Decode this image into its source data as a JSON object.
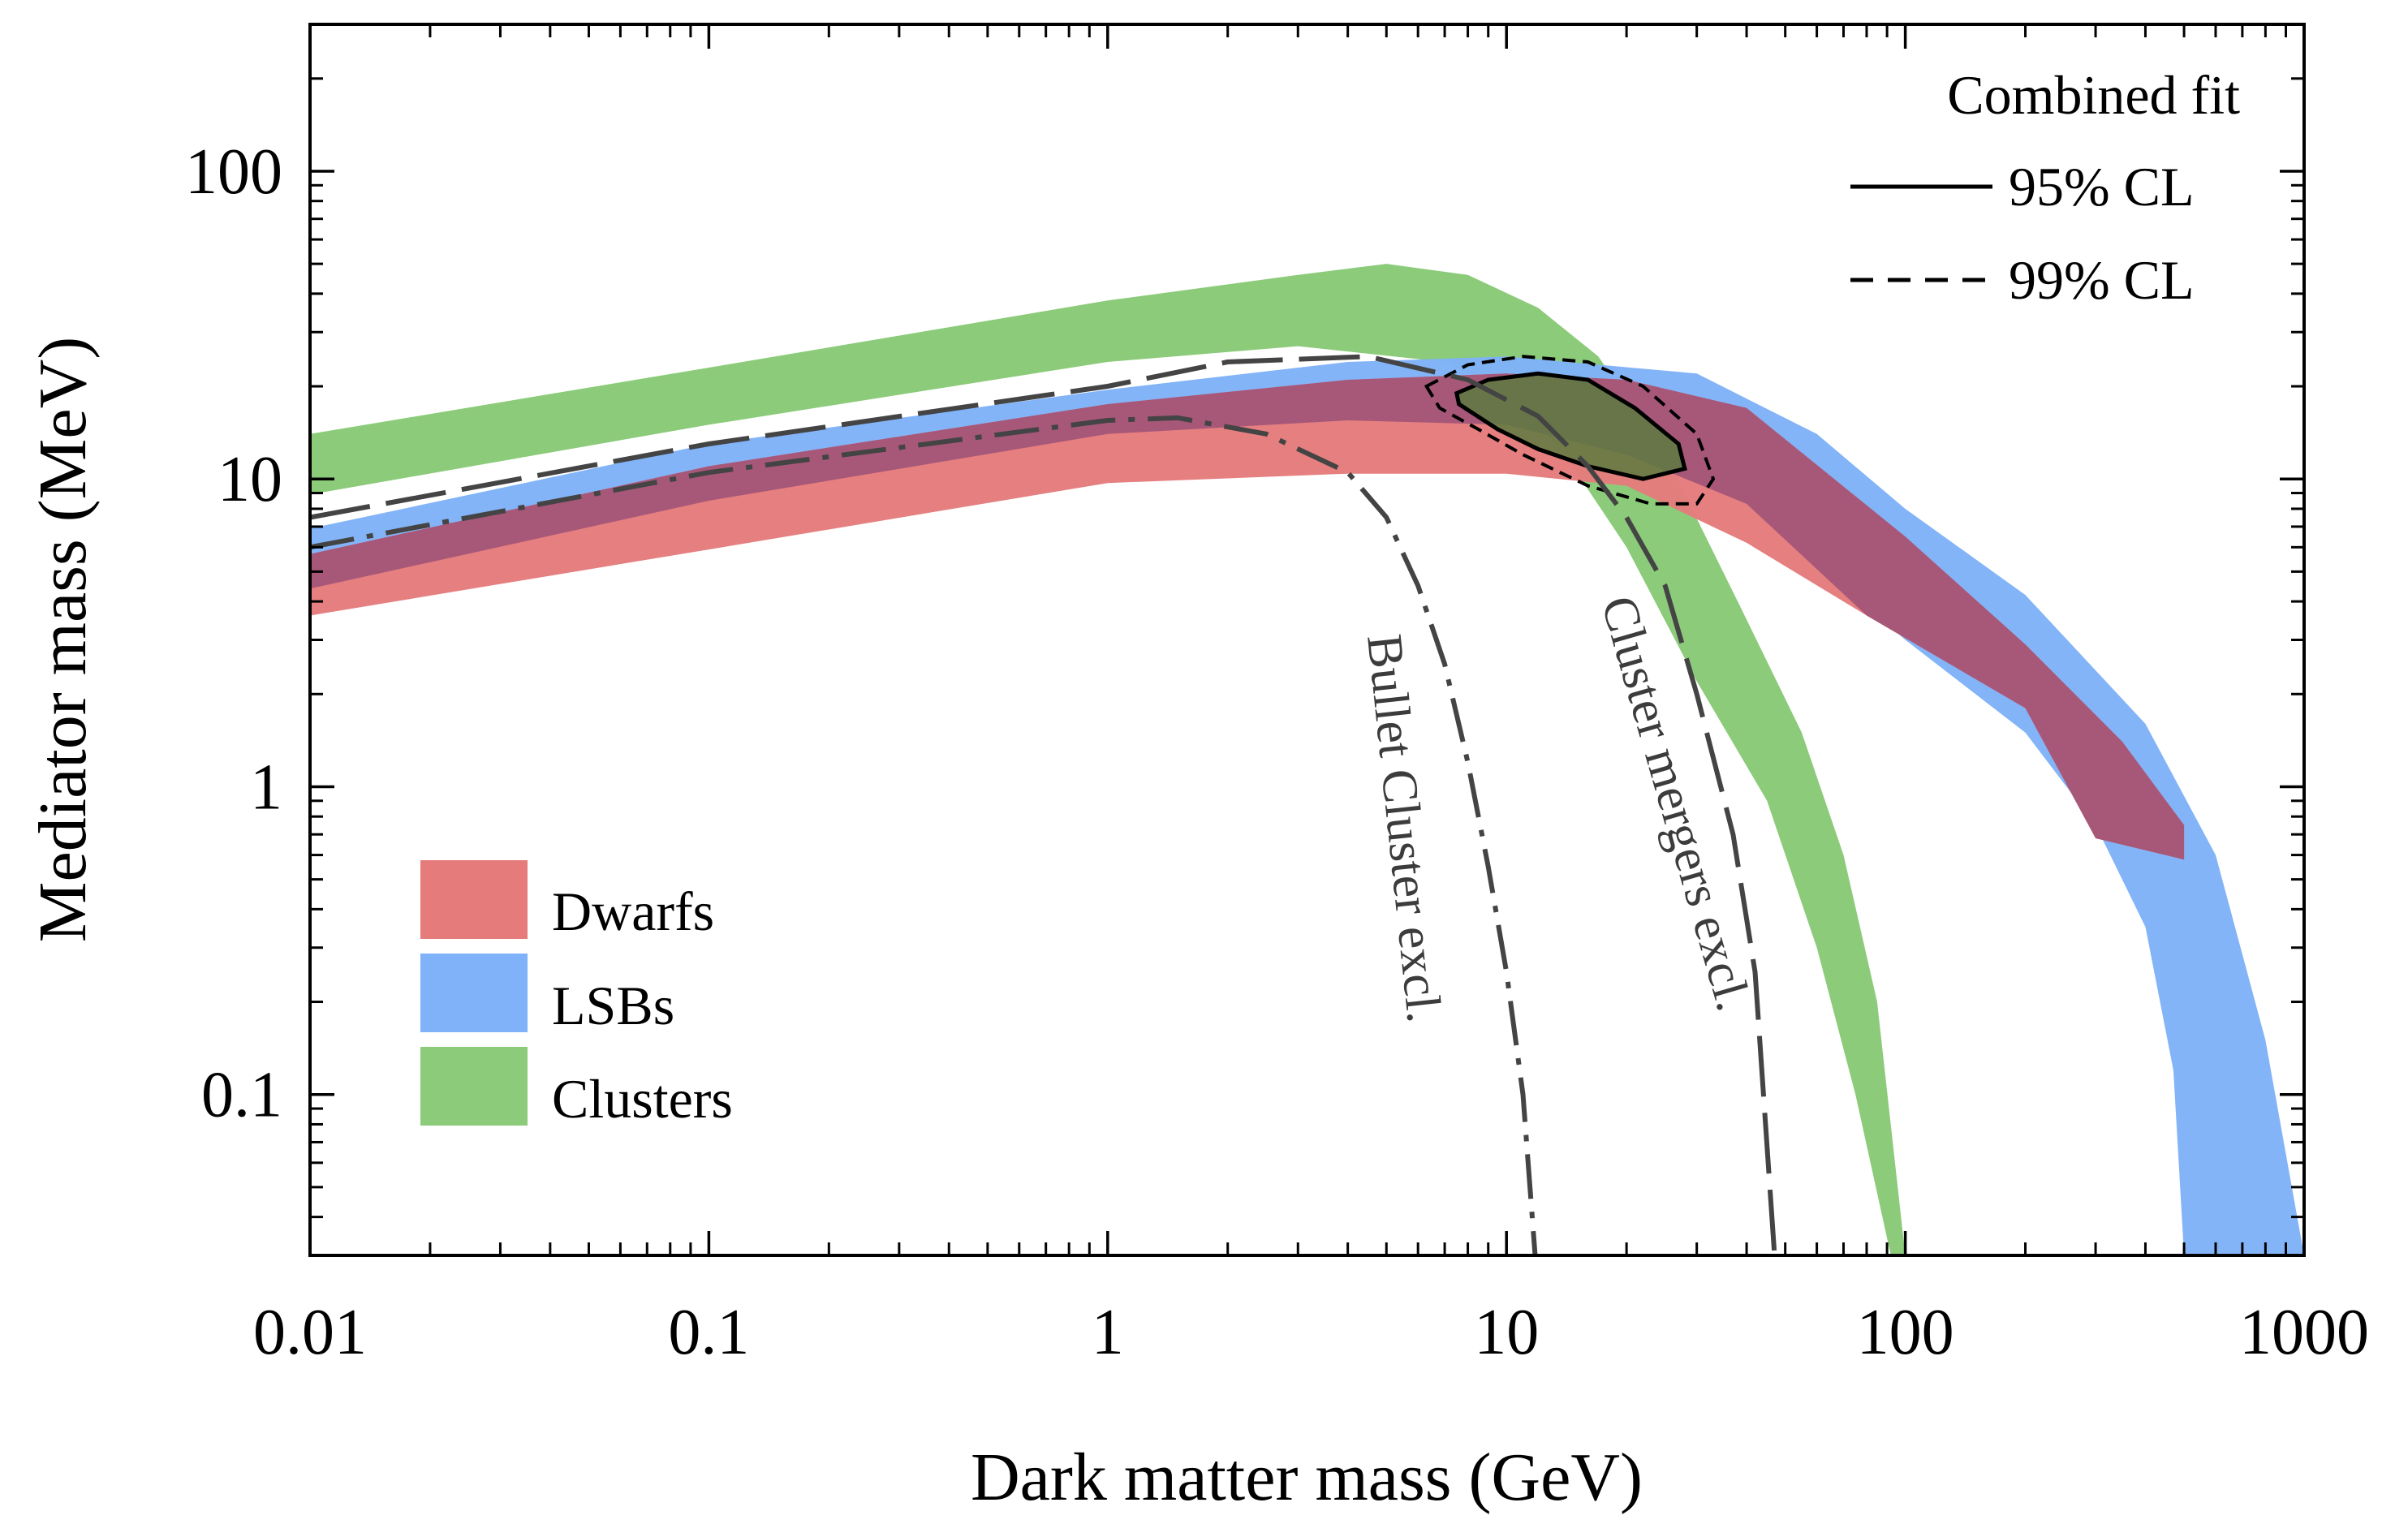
{
  "chart_data": {
    "type": "area",
    "xscale": "log",
    "yscale": "log",
    "xlabel": "Dark matter mass  (GeV)",
    "ylabel": "Mediator mass (MeV)",
    "xlim": [
      0.01,
      1000
    ],
    "ylim": [
      0.03,
      300
    ],
    "x_ticks": [
      0.01,
      0.1,
      1,
      10,
      100,
      1000
    ],
    "x_tick_labels": [
      "0.01",
      "0.1",
      "1",
      "10",
      "100",
      "1000"
    ],
    "y_ticks": [
      0.1,
      1,
      10,
      100
    ],
    "y_tick_labels": [
      "0.1",
      "1",
      "10",
      "100"
    ],
    "colors": {
      "dwarfs": "#e57b7b",
      "lsbs": "#7fb2f8",
      "clusters": "#8ccb7a",
      "overlap": "#a25578",
      "fit_fill": "#5d7a3f",
      "annotation": "#444444"
    },
    "bands": [
      {
        "name": "Clusters",
        "lower": [
          [
            0.01,
            8.9
          ],
          [
            0.1,
            15
          ],
          [
            1,
            24
          ],
          [
            3,
            27
          ],
          [
            7,
            24
          ],
          [
            10,
            19
          ],
          [
            14,
            12
          ],
          [
            20,
            6
          ],
          [
            30,
            2.2
          ],
          [
            45,
            0.9
          ],
          [
            60,
            0.3
          ],
          [
            75,
            0.1
          ],
          [
            92,
            0.03
          ]
        ],
        "upper": [
          [
            0.01,
            14
          ],
          [
            0.1,
            23
          ],
          [
            1,
            38
          ],
          [
            3,
            46
          ],
          [
            5,
            50
          ],
          [
            8,
            46
          ],
          [
            12,
            36
          ],
          [
            17,
            25
          ],
          [
            25,
            12
          ],
          [
            38,
            4
          ],
          [
            55,
            1.5
          ],
          [
            70,
            0.6
          ],
          [
            85,
            0.2
          ],
          [
            100,
            0.03
          ]
        ]
      },
      {
        "name": "LSBs",
        "lower": [
          [
            0.01,
            4.4
          ],
          [
            0.1,
            8.5
          ],
          [
            1,
            14
          ],
          [
            4,
            15.5
          ],
          [
            10,
            15
          ],
          [
            20,
            12
          ],
          [
            40,
            8.3
          ],
          [
            100,
            3
          ],
          [
            200,
            1.5
          ],
          [
            300,
            0.75
          ],
          [
            400,
            0.35
          ],
          [
            470,
            0.12
          ],
          [
            500,
            0.03
          ]
        ],
        "upper": [
          [
            0.01,
            6.9
          ],
          [
            0.1,
            13
          ],
          [
            1,
            19.5
          ],
          [
            4,
            24
          ],
          [
            10,
            25
          ],
          [
            30,
            22
          ],
          [
            60,
            14
          ],
          [
            100,
            8
          ],
          [
            200,
            4.2
          ],
          [
            400,
            1.6
          ],
          [
            600,
            0.6
          ],
          [
            800,
            0.15
          ],
          [
            1000,
            0.03
          ]
        ]
      },
      {
        "name": "Dwarfs",
        "lower": [
          [
            0.01,
            3.6
          ],
          [
            0.1,
            5.9
          ],
          [
            1,
            9.7
          ],
          [
            4,
            10.4
          ],
          [
            10,
            10.4
          ],
          [
            20,
            9.5
          ],
          [
            40,
            6.2
          ],
          [
            80,
            3.6
          ],
          [
            200,
            1.8
          ],
          [
            300,
            0.68
          ],
          [
            500,
            0.58
          ]
        ],
        "upper": [
          [
            0.01,
            5.7
          ],
          [
            0.1,
            11
          ],
          [
            1,
            17.5
          ],
          [
            4,
            21
          ],
          [
            10,
            22
          ],
          [
            20,
            21
          ],
          [
            40,
            17
          ],
          [
            100,
            6.5
          ],
          [
            200,
            2.9
          ],
          [
            350,
            1.4
          ],
          [
            500,
            0.75
          ]
        ]
      }
    ],
    "overlap_region": {
      "name": "Dwarfs and LSBs overlap",
      "lower": [
        [
          0.01,
          4.4
        ],
        [
          0.1,
          8.5
        ],
        [
          1,
          14
        ],
        [
          4,
          15.5
        ],
        [
          10,
          15
        ],
        [
          20,
          12
        ],
        [
          40,
          8.3
        ],
        [
          80,
          3.6
        ],
        [
          200,
          1.8
        ],
        [
          300,
          0.68
        ],
        [
          500,
          0.58
        ]
      ],
      "upper": [
        [
          0.01,
          5.7
        ],
        [
          0.1,
          11
        ],
        [
          1,
          17.5
        ],
        [
          4,
          21
        ],
        [
          10,
          22
        ],
        [
          20,
          21
        ],
        [
          40,
          17
        ],
        [
          100,
          6.5
        ],
        [
          200,
          2.9
        ],
        [
          350,
          1.4
        ],
        [
          500,
          0.75
        ]
      ]
    },
    "combined_fit": {
      "title": "Combined fit",
      "cl95": {
        "label": "95% CL",
        "points": [
          [
            7.5,
            19
          ],
          [
            9,
            21
          ],
          [
            12,
            22
          ],
          [
            16,
            21
          ],
          [
            21,
            17
          ],
          [
            27,
            13
          ],
          [
            28,
            10.8
          ],
          [
            22,
            10
          ],
          [
            16,
            11
          ],
          [
            12,
            12.5
          ],
          [
            9.5,
            14.5
          ],
          [
            7.6,
            17.5
          ]
        ]
      },
      "cl99": {
        "label": "99% CL",
        "points": [
          [
            6.3,
            20
          ],
          [
            8,
            23.5
          ],
          [
            11,
            25
          ],
          [
            16,
            24
          ],
          [
            22,
            20
          ],
          [
            30,
            14
          ],
          [
            33,
            10
          ],
          [
            30,
            8.3
          ],
          [
            23,
            8.3
          ],
          [
            16,
            9.5
          ],
          [
            11,
            12
          ],
          [
            8.5,
            14.5
          ],
          [
            6.8,
            17
          ]
        ]
      }
    },
    "exclusions": [
      {
        "name": "Bullet Cluster excl.",
        "style": "dash-dot",
        "points": [
          [
            0.01,
            6
          ],
          [
            0.1,
            10.5
          ],
          [
            1,
            15.5
          ],
          [
            1.5,
            15.8
          ],
          [
            2.5,
            14
          ],
          [
            4,
            10.5
          ],
          [
            5,
            7.5
          ],
          [
            6,
            4.5
          ],
          [
            7,
            2.5
          ],
          [
            8,
            1.2
          ],
          [
            9,
            0.55
          ],
          [
            10,
            0.25
          ],
          [
            11,
            0.1
          ],
          [
            11.8,
            0.03
          ]
        ]
      },
      {
        "name": "Cluster mergers excl.",
        "style": "long-dash",
        "points": [
          [
            0.01,
            7.5
          ],
          [
            0.1,
            13
          ],
          [
            1,
            20
          ],
          [
            2,
            24
          ],
          [
            4.5,
            25
          ],
          [
            8,
            21
          ],
          [
            12,
            16
          ],
          [
            16,
            11
          ],
          [
            20,
            7.5
          ],
          [
            25,
            4.5
          ],
          [
            30,
            2
          ],
          [
            37,
            0.7
          ],
          [
            42,
            0.25
          ],
          [
            47,
            0.03
          ]
        ]
      }
    ],
    "legend": {
      "placement": "bottom-left",
      "entries": [
        {
          "label": "Dwarfs",
          "color": "#e57b7b"
        },
        {
          "label": "LSBs",
          "color": "#7fb2f8"
        },
        {
          "label": "Clusters",
          "color": "#8ccb7a"
        }
      ]
    },
    "fit_legend": {
      "placement": "top-right",
      "title": "Combined fit",
      "entries": [
        {
          "label": "95% CL",
          "style": "solid"
        },
        {
          "label": "99% CL",
          "style": "dashed"
        }
      ]
    },
    "annotations": [
      {
        "text": "Bullet Cluster excl."
      },
      {
        "text": "Cluster mergers excl."
      }
    ]
  }
}
